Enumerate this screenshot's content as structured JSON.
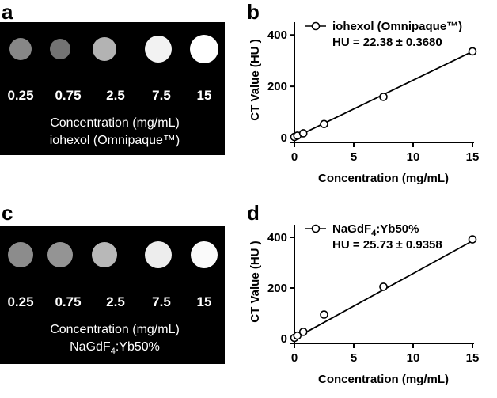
{
  "panels": {
    "a": {
      "label": "a",
      "concentrations": [
        "0.25",
        "0.75",
        "2.5",
        "7.5",
        "15"
      ],
      "phantom_brightness": [
        0.53,
        0.45,
        0.7,
        0.95,
        1.0
      ],
      "caption_line1": "Concentration (mg/mL)",
      "caption_line2": "iohexol (Omnipaque™)"
    },
    "c": {
      "label": "c",
      "concentrations": [
        "0.25",
        "0.75",
        "2.5",
        "7.5",
        "15"
      ],
      "phantom_brightness": [
        0.55,
        0.58,
        0.72,
        0.93,
        0.98
      ],
      "caption_line1": "Concentration (mg/mL)",
      "caption_line2_main": "NaGdF",
      "caption_line2_sub": "4",
      "caption_line2_rest": ":Yb50%"
    }
  },
  "chart_data": [
    {
      "panel": "b",
      "label": "b",
      "type": "scatter",
      "xlabel": "Concentration (mg/mL)",
      "ylabel": "CT Value (HU )",
      "xlim": [
        0,
        15
      ],
      "ylim": [
        0,
        450
      ],
      "xticks": [
        0,
        5,
        10,
        15
      ],
      "yticks": [
        0,
        200,
        400
      ],
      "legend_name": "iohexol (Omnipaque™)",
      "legend_name_main": "iohexol (Omnipaque™)",
      "legend_name_sub": "",
      "legend_name_rest": "",
      "equation": "HU = 22.38 ± 0.3680",
      "legend_position": "top-left",
      "x": [
        0,
        0.25,
        0.75,
        2.5,
        7.5,
        15
      ],
      "y": [
        3,
        8,
        17,
        53,
        159,
        336
      ],
      "fit": {
        "slope": 22.38,
        "intercept": 0
      }
    },
    {
      "panel": "d",
      "label": "d",
      "type": "scatter",
      "xlabel": "Concentration (mg/mL)",
      "ylabel": "CT Value (HU )",
      "xlim": [
        0,
        15
      ],
      "ylim": [
        0,
        450
      ],
      "xticks": [
        0,
        5,
        10,
        15
      ],
      "yticks": [
        0,
        200,
        400
      ],
      "legend_name": "NaGdF4:Yb50%",
      "legend_name_main": "NaGdF",
      "legend_name_sub": "4",
      "legend_name_rest": ":Yb50%",
      "equation": "HU = 25.73 ± 0.9358",
      "legend_position": "top-left",
      "x": [
        0,
        0.25,
        0.75,
        2.5,
        7.5,
        15
      ],
      "y": [
        3,
        12,
        27,
        95,
        205,
        392
      ],
      "fit": {
        "slope": 25.73,
        "intercept": 0
      }
    }
  ]
}
